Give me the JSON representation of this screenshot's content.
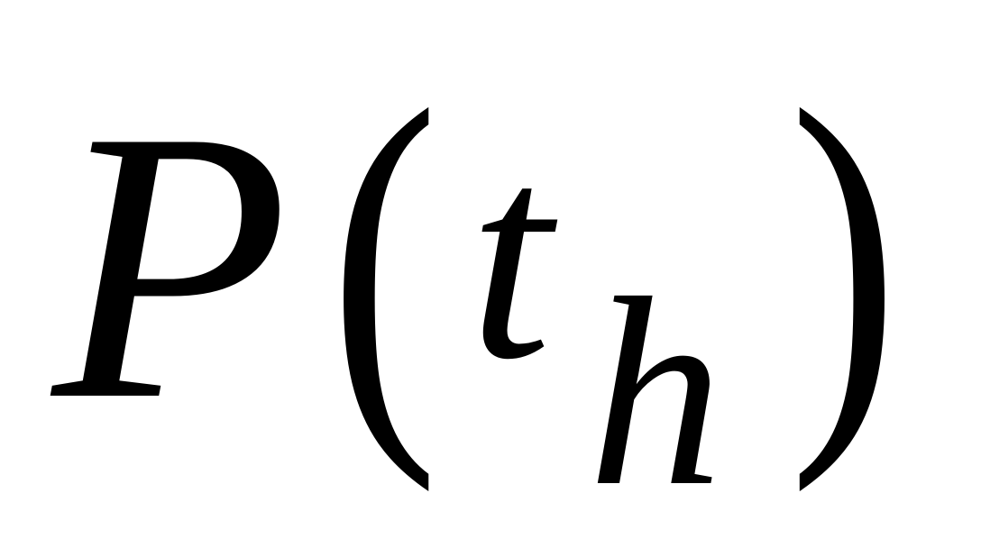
{
  "expression": {
    "function_name": "P",
    "open_paren": "(",
    "variable": "t",
    "subscript": "h",
    "close_paren": ")"
  }
}
